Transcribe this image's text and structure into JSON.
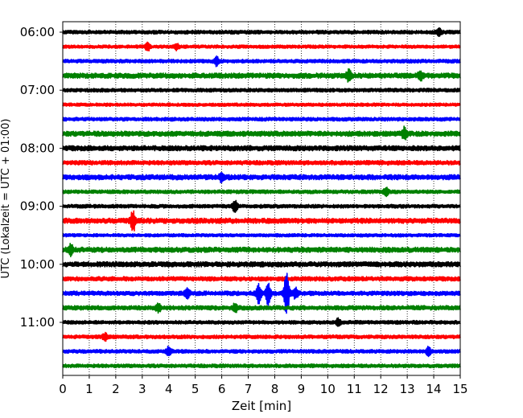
{
  "chart_data": {
    "type": "line",
    "title": "",
    "xlabel": "Zeit  [min]",
    "ylabel": "UTC (Lokalzeit = UTC + 01:00)",
    "xlim": [
      0,
      15
    ],
    "x_ticks": [
      0,
      1,
      2,
      3,
      4,
      5,
      6,
      7,
      8,
      9,
      10,
      11,
      12,
      13,
      14,
      15
    ],
    "y_ticks": [
      "06:00",
      "07:00",
      "08:00",
      "09:00",
      "10:00",
      "11:00"
    ],
    "grid": "vertical dotted",
    "trace_colors": [
      "#000000",
      "#ff0000",
      "#0000ff",
      "#008000"
    ],
    "trace_interval_min": 15,
    "traces": [
      {
        "start": "06:00",
        "color": "#000000",
        "amplitude": 0.25,
        "events": [
          {
            "t": 14.2,
            "amp": 0.6
          }
        ]
      },
      {
        "start": "06:15",
        "color": "#ff0000",
        "amplitude": 0.22,
        "events": [
          {
            "t": 3.2,
            "amp": 0.6
          },
          {
            "t": 4.3,
            "amp": 0.5
          }
        ]
      },
      {
        "start": "06:30",
        "color": "#0000ff",
        "amplitude": 0.25,
        "events": [
          {
            "t": 5.8,
            "amp": 0.6
          }
        ]
      },
      {
        "start": "06:45",
        "color": "#008000",
        "amplitude": 0.35,
        "events": [
          {
            "t": 10.8,
            "amp": 0.8
          },
          {
            "t": 13.5,
            "amp": 0.7
          }
        ]
      },
      {
        "start": "07:00",
        "color": "#000000",
        "amplitude": 0.25,
        "events": []
      },
      {
        "start": "07:15",
        "color": "#ff0000",
        "amplitude": 0.22,
        "events": []
      },
      {
        "start": "07:30",
        "color": "#0000ff",
        "amplitude": 0.25,
        "events": []
      },
      {
        "start": "07:45",
        "color": "#008000",
        "amplitude": 0.35,
        "events": [
          {
            "t": 12.9,
            "amp": 0.8
          }
        ]
      },
      {
        "start": "08:00",
        "color": "#000000",
        "amplitude": 0.35,
        "events": []
      },
      {
        "start": "08:15",
        "color": "#ff0000",
        "amplitude": 0.3,
        "events": []
      },
      {
        "start": "08:30",
        "color": "#0000ff",
        "amplitude": 0.35,
        "events": [
          {
            "t": 6.0,
            "amp": 0.6
          }
        ]
      },
      {
        "start": "08:45",
        "color": "#008000",
        "amplitude": 0.25,
        "events": [
          {
            "t": 12.2,
            "amp": 0.6
          }
        ]
      },
      {
        "start": "09:00",
        "color": "#000000",
        "amplitude": 0.25,
        "events": [
          {
            "t": 6.5,
            "amp": 0.9
          }
        ]
      },
      {
        "start": "09:15",
        "color": "#ff0000",
        "amplitude": 0.35,
        "events": [
          {
            "t": 2.65,
            "amp": 1.5
          }
        ]
      },
      {
        "start": "09:30",
        "color": "#0000ff",
        "amplitude": 0.22,
        "events": []
      },
      {
        "start": "09:45",
        "color": "#008000",
        "amplitude": 0.35,
        "events": [
          {
            "t": 0.3,
            "amp": 0.7
          }
        ]
      },
      {
        "start": "10:00",
        "color": "#000000",
        "amplitude": 0.35,
        "events": []
      },
      {
        "start": "10:15",
        "color": "#ff0000",
        "amplitude": 0.3,
        "events": []
      },
      {
        "start": "10:30",
        "color": "#0000ff",
        "amplitude": 0.3,
        "events": [
          {
            "t": 4.7,
            "amp": 0.9
          },
          {
            "t": 7.4,
            "amp": 1.4
          },
          {
            "t": 7.75,
            "amp": 1.6
          },
          {
            "t": 8.45,
            "amp": 3.4
          },
          {
            "t": 8.8,
            "amp": 0.8
          }
        ]
      },
      {
        "start": "10:45",
        "color": "#008000",
        "amplitude": 0.3,
        "events": [
          {
            "t": 3.6,
            "amp": 0.6
          },
          {
            "t": 6.5,
            "amp": 0.6
          }
        ]
      },
      {
        "start": "11:00",
        "color": "#000000",
        "amplitude": 0.25,
        "events": [
          {
            "t": 10.4,
            "amp": 0.5
          }
        ]
      },
      {
        "start": "11:15",
        "color": "#ff0000",
        "amplitude": 0.25,
        "events": [
          {
            "t": 1.6,
            "amp": 0.6
          }
        ]
      },
      {
        "start": "11:30",
        "color": "#0000ff",
        "amplitude": 0.25,
        "events": [
          {
            "t": 4.0,
            "amp": 0.6
          },
          {
            "t": 13.8,
            "amp": 0.6
          }
        ]
      },
      {
        "start": "11:45",
        "color": "#008000",
        "amplitude": 0.25,
        "events": []
      }
    ]
  }
}
